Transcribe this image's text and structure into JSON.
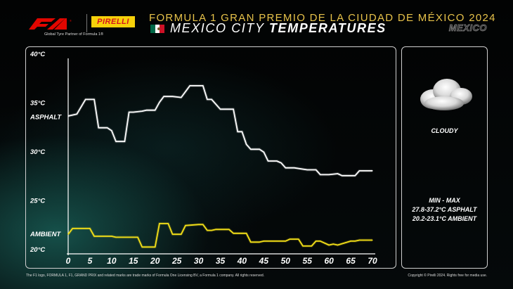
{
  "header": {
    "partner_text": "Global Tyre Partner of Formula 1®",
    "pirelli_label": "PIRELLI",
    "gp_title": "FORMULA 1 GRAN PREMIO DE LA CIUDAD DE MÉXICO 2024",
    "subtitle_light": "MEXICO CITY",
    "subtitle_bold": "TEMPERATURES",
    "location_badge": "MEXICO",
    "flag_colors": [
      "#006847",
      "#ffffff",
      "#ce1126"
    ]
  },
  "weather": {
    "condition": "CLOUDY",
    "minmax_title": "MIN  -  MAX",
    "asphalt_range": "27.8-37.2°C ASPHALT",
    "ambient_range": "20.2-23.1°C AMBIENT",
    "icon": "cloud-icon"
  },
  "footer": {
    "left": "The F1 logo, FORMULA 1, F1, GRAND PRIX and related marks are trade marks of Formula One Licensing BV, a Formula 1 company. All rights reserved.",
    "right": "Copyright © Pirelli 2024. Rights free for media use."
  },
  "chart_data": {
    "type": "line",
    "title": "",
    "xlabel": "",
    "ylabel": "",
    "xlim": [
      0,
      70
    ],
    "ylim": [
      20,
      40
    ],
    "x_ticks": [
      0,
      5,
      10,
      15,
      20,
      25,
      30,
      35,
      40,
      45,
      50,
      55,
      60,
      65,
      70
    ],
    "y_ticks": [
      {
        "value": 40,
        "label": "40°C"
      },
      {
        "value": 35,
        "label": "35°C"
      },
      {
        "value": 30,
        "label": "30°C"
      },
      {
        "value": 25,
        "label": "25°C"
      },
      {
        "value": 20,
        "label": "20°C"
      }
    ],
    "series": [
      {
        "name": "ASPHALT",
        "label_value": 34,
        "color": "#ffffff",
        "x": [
          0,
          2,
          4,
          6,
          7,
          9,
          10,
          11,
          13,
          14,
          15,
          17,
          18,
          20,
          21,
          22,
          24,
          26,
          28,
          29,
          31,
          32,
          33,
          35,
          36,
          38,
          39,
          40,
          41,
          42,
          44,
          45,
          46,
          48,
          49,
          50,
          52,
          55,
          57,
          58,
          60,
          62,
          63,
          65,
          66,
          67,
          68,
          70
        ],
        "y": [
          34.1,
          34.3,
          35.8,
          35.8,
          32.9,
          32.9,
          32.6,
          31.5,
          31.5,
          34.5,
          34.5,
          34.6,
          34.7,
          34.7,
          35.5,
          36.1,
          36.1,
          36.0,
          37.2,
          37.2,
          37.2,
          35.8,
          35.8,
          34.8,
          34.8,
          34.8,
          32.5,
          32.5,
          31.2,
          30.7,
          30.7,
          30.4,
          29.5,
          29.5,
          29.3,
          28.8,
          28.8,
          28.6,
          28.6,
          28.1,
          28.1,
          28.2,
          28.0,
          28.0,
          28.0,
          28.5,
          28.5,
          28.5
        ]
      },
      {
        "name": "AMBIENT",
        "label_value": 22,
        "color": "#f4e018",
        "x": [
          0,
          1,
          2,
          5,
          6,
          10,
          11,
          15,
          16,
          17,
          18,
          20,
          21,
          23,
          24,
          26,
          27,
          30,
          31,
          32,
          33,
          34,
          37,
          38,
          41,
          42,
          44,
          45,
          50,
          51,
          53,
          54,
          56,
          57,
          58,
          60,
          61,
          62,
          65,
          66,
          67,
          68,
          70
        ],
        "y": [
          22.0,
          22.6,
          22.6,
          22.6,
          21.8,
          21.8,
          21.7,
          21.7,
          21.7,
          20.7,
          20.7,
          20.7,
          23.1,
          23.1,
          22.0,
          22.0,
          22.9,
          23.0,
          23.0,
          22.4,
          22.4,
          22.5,
          22.5,
          22.1,
          22.1,
          21.2,
          21.2,
          21.3,
          21.3,
          21.5,
          21.5,
          20.8,
          20.8,
          21.3,
          21.3,
          20.9,
          21.0,
          20.9,
          21.3,
          21.3,
          21.4,
          21.4,
          21.4
        ]
      }
    ],
    "grid": false,
    "legend": "left labels"
  }
}
